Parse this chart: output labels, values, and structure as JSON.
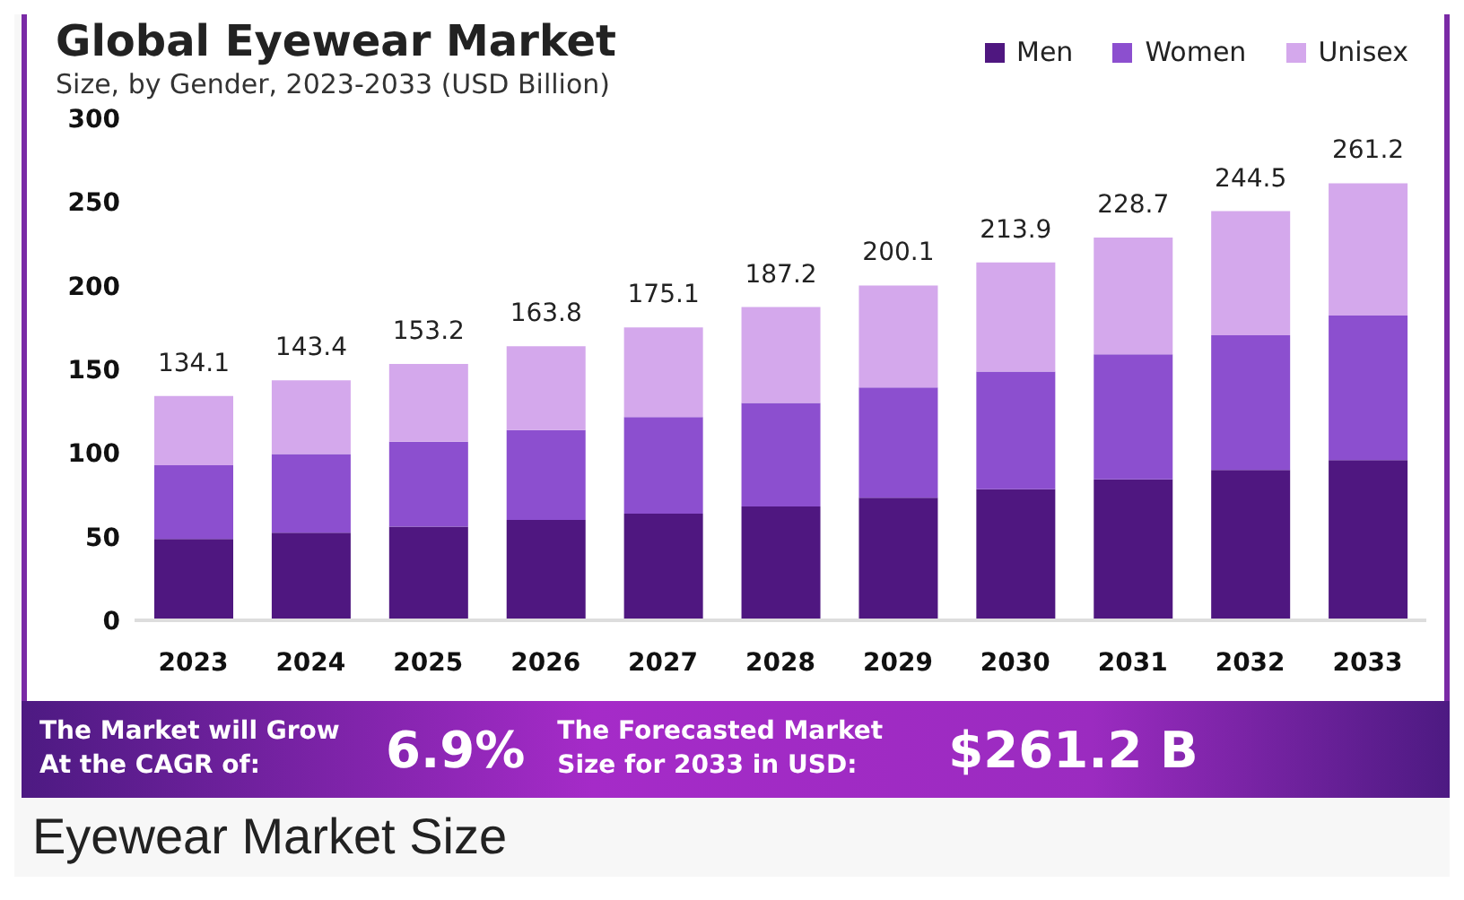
{
  "chart_data": {
    "type": "bar",
    "title": "Global Eyewear Market",
    "subtitle": "Size, by Gender, 2023-2033 (USD Billion)",
    "categories": [
      "2023",
      "2024",
      "2025",
      "2026",
      "2027",
      "2028",
      "2029",
      "2030",
      "2031",
      "2032",
      "2033"
    ],
    "series": [
      {
        "name": "Men",
        "color": "#4f1780",
        "values": [
          48.6,
          52.3,
          56,
          60,
          63.7,
          68.1,
          73.2,
          78.4,
          84.3,
          89.8,
          95.7
        ]
      },
      {
        "name": "Women",
        "color": "#8c4fcf",
        "values": [
          44.1,
          47.1,
          50.7,
          53.7,
          57.8,
          61.8,
          65.9,
          70.3,
          74.7,
          80.6,
          86.5
        ]
      },
      {
        "name": "Unisex",
        "color": "#d4a8ec",
        "values": [
          41.4,
          44,
          46.5,
          50.1,
          53.6,
          57.3,
          61,
          65.2,
          69.7,
          74.1,
          79
        ]
      }
    ],
    "stacked": true,
    "totals": [
      "134.1",
      "143.4",
      "153.2",
      "163.8",
      "175.1",
      "187.2",
      "200.1",
      "213.9",
      "228.7",
      "244.5",
      "261.2"
    ],
    "ylim": [
      0,
      300
    ],
    "yticks": [
      0,
      50,
      100,
      150,
      200,
      250,
      300
    ],
    "grid": false,
    "legend": "top right",
    "annotations": [
      "The Market will Grow At the CAGR of:",
      "6.9%",
      "The Forecasted Market Size for 2033 in USD:",
      "$261.2 B",
      "Eyewear Market Size"
    ]
  }
}
